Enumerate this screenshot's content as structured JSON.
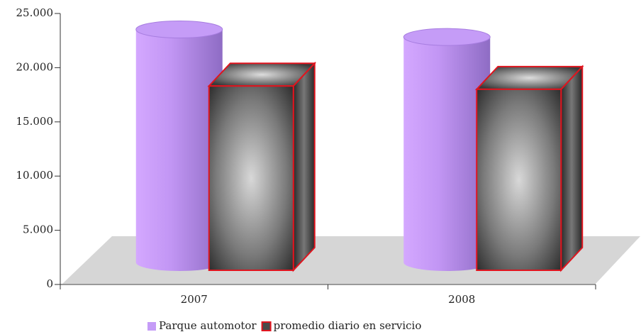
{
  "chart_data": {
    "type": "bar3d",
    "categories": [
      "2007",
      "2008"
    ],
    "series": [
      {
        "name": "Parque automotor",
        "color": "#c59cf7",
        "values": [
          21500,
          20800
        ]
      },
      {
        "name": "promedio diario en servicio",
        "color": "#4a4a4a",
        "edge": "#e0141e",
        "values": [
          17000,
          16700
        ]
      }
    ],
    "ylim": [
      0,
      25000
    ],
    "yticks": [
      0,
      {
        "value": 5000,
        "label": "5.000"
      },
      {
        "value": 10000,
        "label": "10.000"
      },
      {
        "value": 15000,
        "label": "15.000"
      },
      {
        "value": 20000,
        "label": "20.000"
      },
      {
        "value": 25000,
        "label": "25.000"
      }
    ]
  }
}
